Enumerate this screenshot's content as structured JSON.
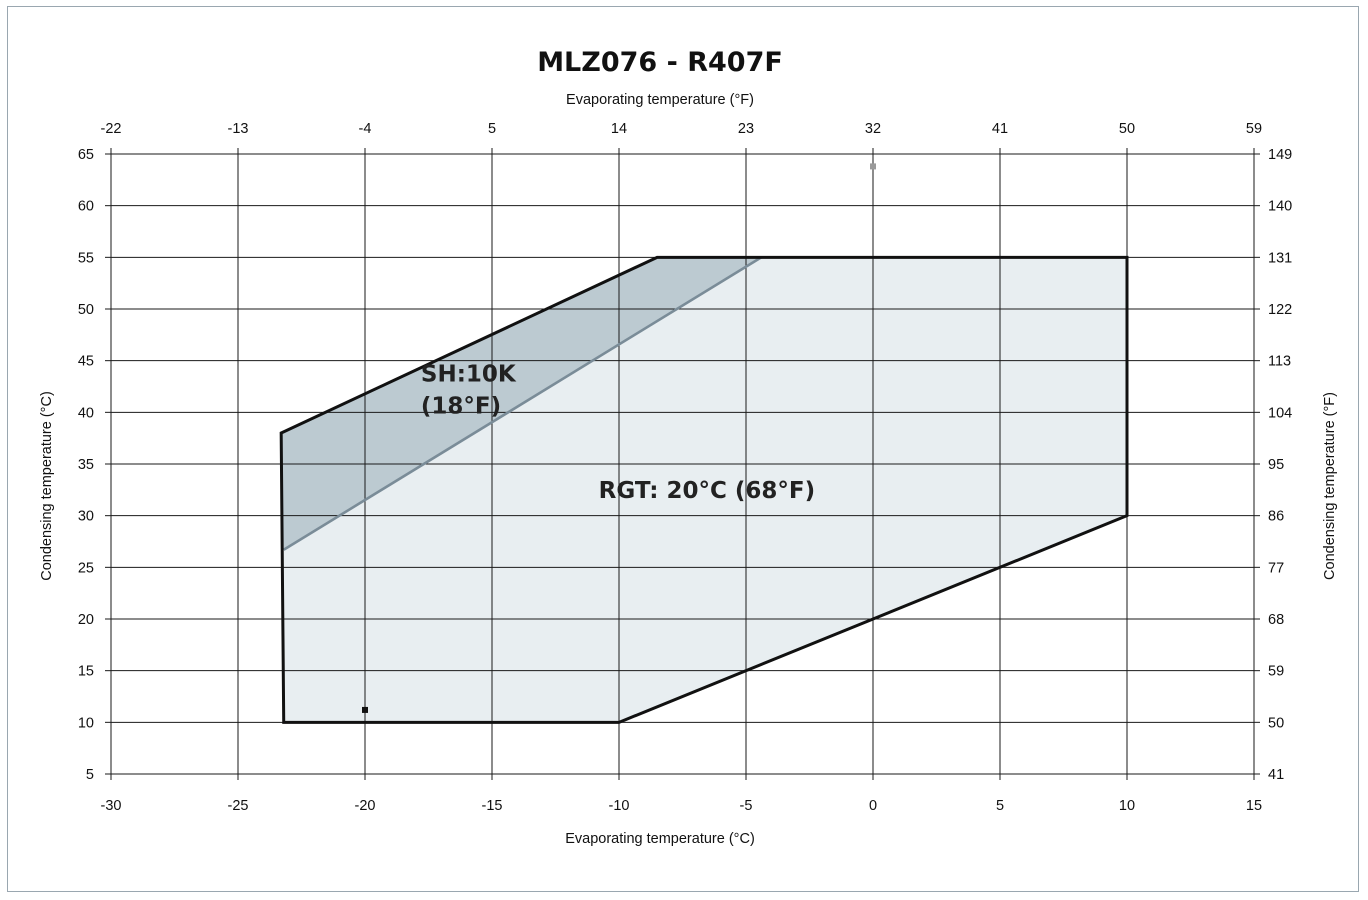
{
  "chart_data": {
    "type": "area",
    "title": "MLZ076  - R407F",
    "x_axis": {
      "label": "Evaporating temperature (°C)",
      "min": -30,
      "max": 15,
      "step": 5,
      "ticks": [
        "-30",
        "-25",
        "-20",
        "-15",
        "-10",
        "-5",
        "0",
        "5",
        "10",
        "15"
      ]
    },
    "x2_axis": {
      "label": "Evaporating temperature (°F)",
      "ticks": [
        "-22",
        "-13",
        "-4",
        "5",
        "14",
        "23",
        "32",
        "41",
        "50",
        "59"
      ]
    },
    "y_axis": {
      "label": "Condensing temperature (°C)",
      "min": 5,
      "max": 65,
      "step": 5,
      "ticks": [
        "65",
        "60",
        "55",
        "50",
        "45",
        "40",
        "35",
        "30",
        "25",
        "20",
        "15",
        "10",
        "5"
      ]
    },
    "y2_axis": {
      "label": "Condensing temperature (°F)",
      "ticks": [
        "149",
        "140",
        "131",
        "122",
        "113",
        "104",
        "95",
        "86",
        "77",
        "68",
        "59",
        "50",
        "41"
      ]
    },
    "grid": true,
    "series": [
      {
        "name": "RGT: 20°C (68°F)",
        "fill": "#e8eef1",
        "stroke": "#111111",
        "points": [
          [
            -23.3,
            38
          ],
          [
            -8.5,
            55
          ],
          [
            10,
            55
          ],
          [
            10,
            30
          ],
          [
            -10,
            10
          ],
          [
            -23.2,
            10
          ]
        ]
      },
      {
        "name": "SH:10K (18°F)",
        "fill": "#bccad1",
        "stroke": "#7a8c98",
        "points": [
          [
            -23.3,
            38
          ],
          [
            -8.5,
            55
          ],
          [
            -4.4,
            55
          ],
          [
            -23.2,
            26.7
          ]
        ]
      }
    ],
    "annotations": [
      {
        "lines": [
          "SH:10K",
          "(18°F)"
        ],
        "x": -17.8,
        "y": 43
      },
      {
        "lines": [
          "RGT: 20°C (68°F)"
        ],
        "x": -10.8,
        "y": 31.7
      }
    ],
    "markers": [
      {
        "x": -20,
        "y": 11.2,
        "color": "#111111"
      },
      {
        "x": 0,
        "y": 63.8,
        "color": "#9a9a9a"
      }
    ]
  }
}
